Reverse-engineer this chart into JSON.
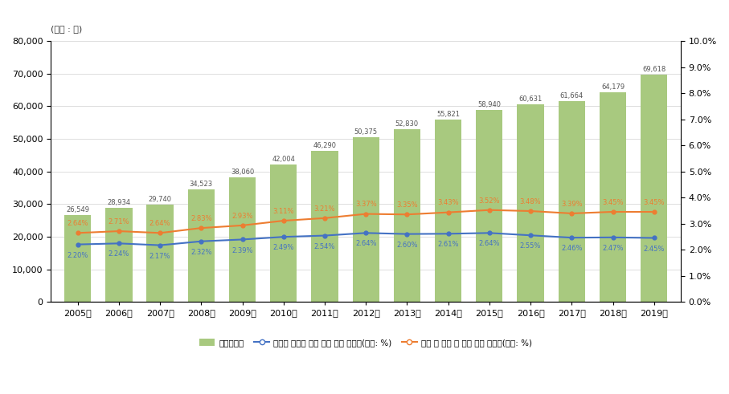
{
  "years": [
    "2005년",
    "2006년",
    "2007년",
    "2008년",
    "2009년",
    "2010년",
    "2011년",
    "2012년",
    "2013년",
    "2014년",
    "2015년",
    "2016년",
    "2017년",
    "2018년",
    "2019년"
  ],
  "papers": [
    26549,
    28934,
    29740,
    34523,
    38060,
    42004,
    46290,
    50375,
    52830,
    55821,
    58940,
    60631,
    61664,
    64179,
    69618
  ],
  "national_ratio": [
    2.2,
    2.24,
    2.17,
    2.32,
    2.39,
    2.49,
    2.54,
    2.64,
    2.6,
    2.61,
    2.64,
    2.55,
    2.46,
    2.47,
    2.45
  ],
  "world_ratio": [
    2.64,
    2.71,
    2.64,
    2.83,
    2.93,
    3.11,
    3.21,
    3.37,
    3.35,
    3.43,
    3.52,
    3.48,
    3.39,
    3.45,
    3.45
  ],
  "bar_color": "#a8c97f",
  "national_line_color": "#4472c4",
  "world_line_color": "#ed7d31",
  "bar_label_color": "#555555",
  "unit_label": "(단위 : 편)",
  "ylim_left": [
    0,
    80000
  ],
  "ylim_right": [
    0.0,
    10.0
  ],
  "yticks_left": [
    0,
    10000,
    20000,
    30000,
    40000,
    50000,
    60000,
    70000,
    80000
  ],
  "yticks_right": [
    0.0,
    1.0,
    2.0,
    3.0,
    4.0,
    5.0,
    6.0,
    7.0,
    8.0,
    9.0,
    10.0
  ],
  "legend_label_bar": "논문발표수",
  "legend_label_nat": "국가별 논문수 합계 대비 논문 점유율(단위: %)",
  "legend_label_world": "세계 종 논문 수 대비 논문 점유율(단위: %)",
  "background_color": "#ffffff",
  "grid_color": "#d0d0d0",
  "nat_label_fmt": [
    "2.20%",
    "2.24%",
    "2.17%",
    "2.32%",
    "2.39%",
    "2.49%",
    "2.54%",
    "2.64%",
    "2.60%",
    "2.61%",
    "2.64%",
    "2.55%",
    "2.46%",
    "2.47%",
    "2.45%"
  ],
  "world_label_fmt": [
    "2.64%",
    "2.71%",
    "2.64%",
    "2.83%",
    "2.93%",
    "3.11%",
    "3.21%",
    "3.37%",
    "3.35%",
    "3.43%",
    "3.52%",
    "3.48%",
    "3.39%",
    "3.45%",
    "3.45%"
  ]
}
